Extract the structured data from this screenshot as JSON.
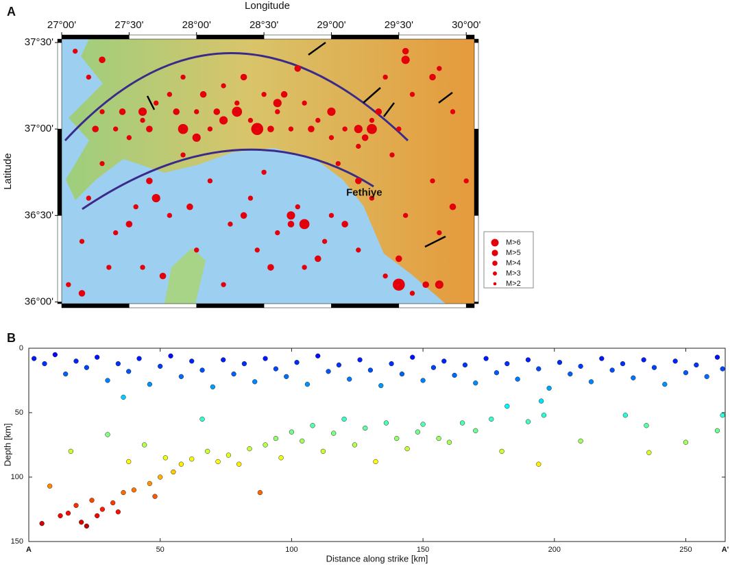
{
  "chart_data": [
    {
      "type": "scatter",
      "panel_label": "A",
      "xlabel": "Longitude",
      "ylabel": "Latitude",
      "xlim": [
        27.0,
        30.06
      ],
      "ylim": [
        35.99,
        37.52
      ],
      "xticks": [
        {
          "value": 27.0,
          "label": "27°00'"
        },
        {
          "value": 27.5,
          "label": "27°30'"
        },
        {
          "value": 28.0,
          "label": "28°00'"
        },
        {
          "value": 28.5,
          "label": "28°30'"
        },
        {
          "value": 29.0,
          "label": "29°00'"
        },
        {
          "value": 29.5,
          "label": "29°30'"
        },
        {
          "value": 30.0,
          "label": "30°00'"
        }
      ],
      "yticks": [
        {
          "value": 36.0,
          "label": "36°00'"
        },
        {
          "value": 36.5,
          "label": "36°30'"
        },
        {
          "value": 37.0,
          "label": "37°00'"
        },
        {
          "value": 37.5,
          "label": "37°30'"
        }
      ],
      "annotations": [
        {
          "text": "Fethiye",
          "x": 29.11,
          "y": 36.63
        }
      ],
      "series": [
        {
          "name": "M>6",
          "color": "#e3000b",
          "x": [
            28.45,
            29.5
          ],
          "y": [
            37.0,
            36.1
          ]
        },
        {
          "name": "M>5",
          "color": "#e3000b",
          "x": [
            28.3,
            27.9,
            29.3,
            28.8
          ],
          "y": [
            37.1,
            37.0,
            37.0,
            36.45
          ]
        },
        {
          "name": "M>4",
          "color": "#e3000b",
          "x": [
            27.6,
            28.2,
            28.6,
            29.2,
            29.55,
            28.7,
            29.8,
            27.7,
            29.0,
            28.0
          ],
          "y": [
            37.1,
            37.05,
            37.15,
            37.0,
            37.4,
            36.5,
            36.1,
            36.6,
            37.1,
            36.95
          ]
        },
        {
          "name": "M>3",
          "color": "#e3000b",
          "x": [
            27.25,
            27.45,
            27.65,
            27.85,
            28.05,
            28.15,
            28.35,
            28.55,
            28.65,
            28.85,
            29.25,
            29.35,
            29.55,
            29.75,
            27.5,
            27.95,
            28.35,
            28.7,
            28.9,
            29.1,
            29.5,
            29.7,
            27.15,
            27.75,
            28.55,
            29.2,
            27.3,
            28.75,
            29.9,
            27.65
          ],
          "y": [
            37.0,
            37.1,
            37.0,
            37.1,
            37.2,
            37.1,
            37.3,
            37.0,
            37.2,
            37.0,
            36.95,
            37.1,
            37.45,
            37.3,
            36.45,
            36.55,
            36.5,
            36.45,
            36.25,
            36.45,
            36.25,
            36.1,
            36.05,
            36.15,
            36.2,
            36.7,
            37.4,
            37.35,
            36.55,
            36.7
          ]
        },
        {
          "name": "M>2",
          "color": "#e3000b",
          "x": [
            27.1,
            27.2,
            27.3,
            27.4,
            27.5,
            27.6,
            27.7,
            27.8,
            27.9,
            28.0,
            28.1,
            28.2,
            28.3,
            28.4,
            28.5,
            28.6,
            28.7,
            28.8,
            28.9,
            29.0,
            29.1,
            29.2,
            29.3,
            29.4,
            29.5,
            29.6,
            29.8,
            29.9,
            27.2,
            27.4,
            27.6,
            27.8,
            28.0,
            28.2,
            28.4,
            28.6,
            28.8,
            29.0,
            29.2,
            29.4,
            29.6,
            29.8,
            30.0,
            27.05,
            27.3,
            27.9,
            28.5,
            29.05,
            29.3,
            27.15,
            28.25,
            28.75,
            29.55,
            29.75,
            27.55,
            28.95,
            28.1,
            27.35,
            29.45,
            28.45
          ],
          "y": [
            37.45,
            37.3,
            37.1,
            37.0,
            36.95,
            37.05,
            37.15,
            37.2,
            37.3,
            37.1,
            37.0,
            37.25,
            37.15,
            37.05,
            37.2,
            37.1,
            37.0,
            37.15,
            37.05,
            36.95,
            37.0,
            36.9,
            37.05,
            37.3,
            37.0,
            37.2,
            37.35,
            37.1,
            36.6,
            36.4,
            36.2,
            36.5,
            36.3,
            36.1,
            36.6,
            36.4,
            36.2,
            36.5,
            36.3,
            36.15,
            36.05,
            36.4,
            36.7,
            36.1,
            36.8,
            36.85,
            36.75,
            36.8,
            36.6,
            36.35,
            36.45,
            36.55,
            36.5,
            36.7,
            36.55,
            36.35,
            36.7,
            36.2,
            36.85,
            36.3
          ]
        }
      ]
    },
    {
      "type": "scatter",
      "panel_label": "B",
      "xlabel": "Distance along strike [km]",
      "ylabel": "Depth [km]",
      "start_label": "A",
      "end_label": "A'",
      "colormap": "jet",
      "xlim": [
        0,
        265
      ],
      "ylim": [
        150,
        0
      ],
      "xticks": [
        50,
        100,
        150,
        200,
        250
      ],
      "yticks": [
        0,
        50,
        100,
        150
      ],
      "x": [
        2,
        6,
        10,
        14,
        18,
        22,
        26,
        30,
        34,
        38,
        42,
        46,
        50,
        54,
        58,
        62,
        66,
        70,
        74,
        78,
        82,
        86,
        90,
        94,
        98,
        102,
        106,
        110,
        114,
        118,
        122,
        126,
        130,
        134,
        138,
        142,
        146,
        150,
        154,
        158,
        162,
        166,
        170,
        174,
        178,
        182,
        186,
        190,
        194,
        198,
        202,
        206,
        210,
        214,
        218,
        222,
        226,
        230,
        234,
        238,
        242,
        246,
        250,
        254,
        258,
        262,
        264,
        5,
        8,
        12,
        15,
        18,
        20,
        22,
        24,
        26,
        28,
        30,
        32,
        34,
        36,
        38,
        40,
        44,
        46,
        48,
        50,
        52,
        55,
        58,
        62,
        66,
        68,
        72,
        76,
        80,
        84,
        88,
        90,
        94,
        96,
        100,
        104,
        108,
        112,
        116,
        120,
        124,
        128,
        132,
        136,
        140,
        144,
        148,
        150,
        156,
        160,
        165,
        170,
        176,
        180,
        190,
        194,
        196,
        210,
        227,
        235,
        236,
        250,
        262,
        264,
        16,
        36,
        195,
        182
      ],
      "y": [
        8,
        12,
        5,
        20,
        10,
        15,
        7,
        25,
        12,
        18,
        8,
        28,
        14,
        6,
        22,
        10,
        17,
        30,
        9,
        20,
        12,
        26,
        8,
        16,
        22,
        11,
        28,
        6,
        18,
        13,
        24,
        9,
        17,
        29,
        12,
        20,
        7,
        25,
        15,
        10,
        21,
        13,
        27,
        8,
        19,
        12,
        24,
        9,
        16,
        31,
        11,
        20,
        14,
        26,
        8,
        17,
        12,
        23,
        9,
        15,
        28,
        10,
        19,
        13,
        22,
        7,
        16,
        136,
        107,
        130,
        128,
        122,
        135,
        138,
        118,
        130,
        125,
        67,
        120,
        127,
        112,
        88,
        110,
        75,
        105,
        115,
        100,
        85,
        96,
        90,
        86,
        55,
        80,
        88,
        83,
        90,
        78,
        112,
        75,
        70,
        85,
        65,
        72,
        60,
        80,
        66,
        55,
        75,
        62,
        88,
        58,
        70,
        78,
        65,
        59,
        70,
        73,
        58,
        64,
        55,
        80,
        57,
        90,
        52,
        72,
        52,
        60,
        81,
        73,
        64,
        52,
        80,
        38,
        41,
        45
      ]
    }
  ]
}
